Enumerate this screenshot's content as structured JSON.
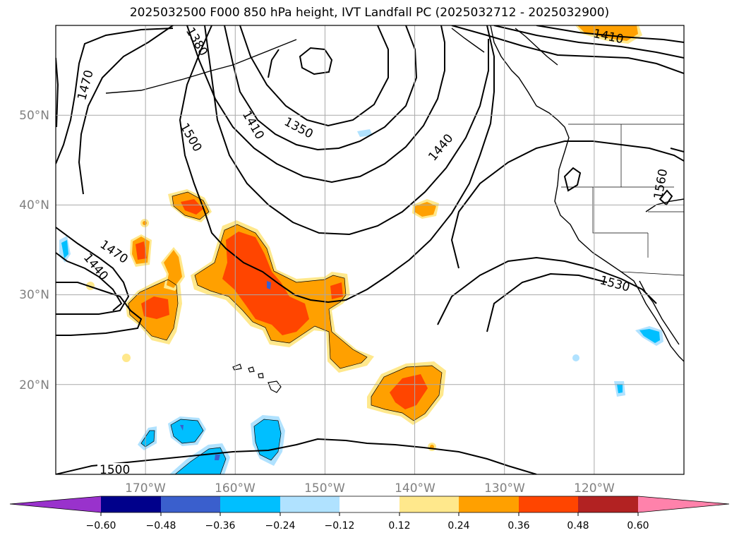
{
  "title": "2025032500 F000 850 hPa height, IVT Landfall PC (2025032712 - 2025032900)",
  "map": {
    "lon_range": [
      -180,
      -110
    ],
    "lat_range": [
      10,
      60
    ],
    "lat_labels": [
      "50°N",
      "40°N",
      "30°N",
      "20°N"
    ],
    "lon_labels": [
      "170°W",
      "160°W",
      "150°W",
      "140°W",
      "130°W",
      "120°W"
    ],
    "contour_labels": [
      "1380",
      "1470",
      "1500",
      "1410",
      "1350",
      "1440",
      "1410",
      "1470",
      "1440",
      "1560",
      "1530",
      "1500"
    ],
    "grid": true
  },
  "colorbar": {
    "tick_labels": [
      "−0.60",
      "−0.48",
      "−0.36",
      "−0.24",
      "−0.12",
      "0.12",
      "0.24",
      "0.36",
      "0.48",
      "0.60"
    ],
    "colors": [
      "#9932cc",
      "#00008b",
      "#3a5fcd",
      "#00bfff",
      "#b0e2ff",
      "#ffffff",
      "#ffe88c",
      "#ffa000",
      "#ff4500",
      "#b22222",
      "#ff82ab"
    ]
  }
}
